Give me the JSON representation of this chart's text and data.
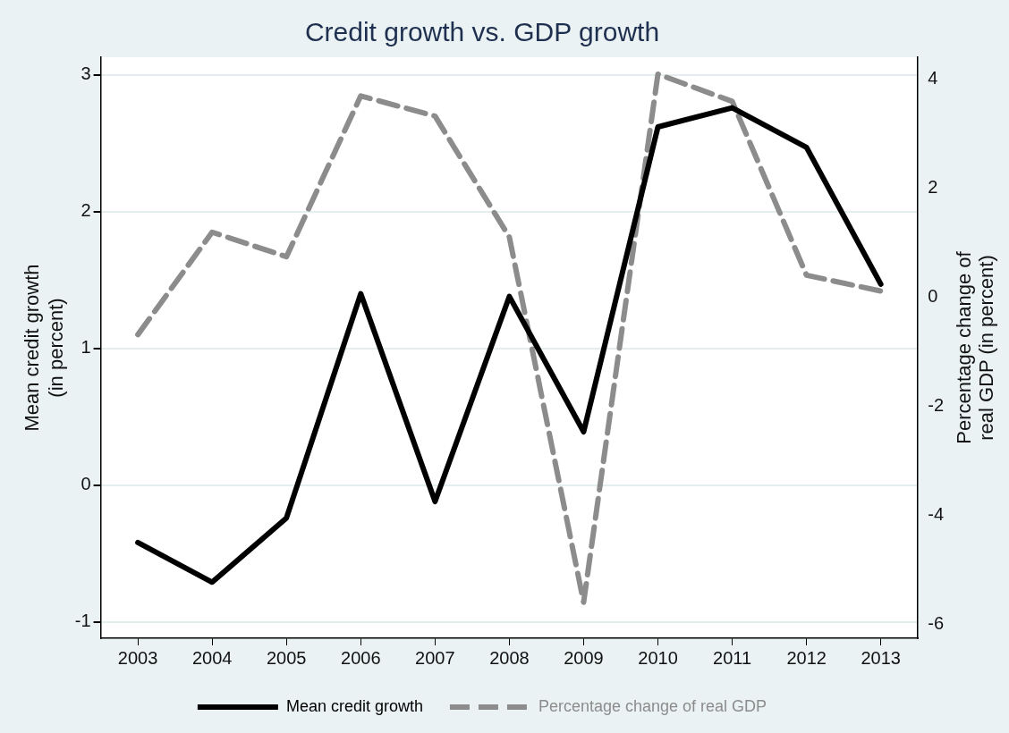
{
  "chart_data": {
    "type": "line",
    "title": "Credit growth vs. GDP growth",
    "ylabel": "Mean credit growth\n(in percent)",
    "y2label": "Percentage change of\nreal GDP (in percent)",
    "categories": [
      "2003",
      "2004",
      "2005",
      "2006",
      "2007",
      "2008",
      "2009",
      "2010",
      "2011",
      "2012",
      "2013"
    ],
    "series": [
      {
        "name": "Mean credit growth",
        "color": "#000000",
        "line_style": "solid",
        "values": [
          -0.42,
          -0.71,
          -0.24,
          1.4,
          -0.12,
          1.38,
          0.39,
          2.62,
          2.76,
          2.47,
          1.47
        ]
      },
      {
        "name": "Percentage change of real GDP",
        "color": "#8c8c8c",
        "line_style": "dashed",
        "axis": "y2",
        "values": [
          -0.69,
          1.19,
          0.74,
          3.69,
          3.32,
          1.1,
          -5.6,
          4.09,
          3.59,
          0.4,
          0.11
        ]
      }
    ],
    "ylim": [
      -1.12,
      3.13
    ],
    "yticks": [
      -1,
      0,
      1,
      2,
      3
    ],
    "y2lim": [
      -6.26,
      4.4
    ],
    "y2ticks": [
      -6,
      -4,
      -2,
      0,
      2,
      4
    ],
    "grid": "y",
    "legend": "bottom",
    "marker": "none"
  }
}
